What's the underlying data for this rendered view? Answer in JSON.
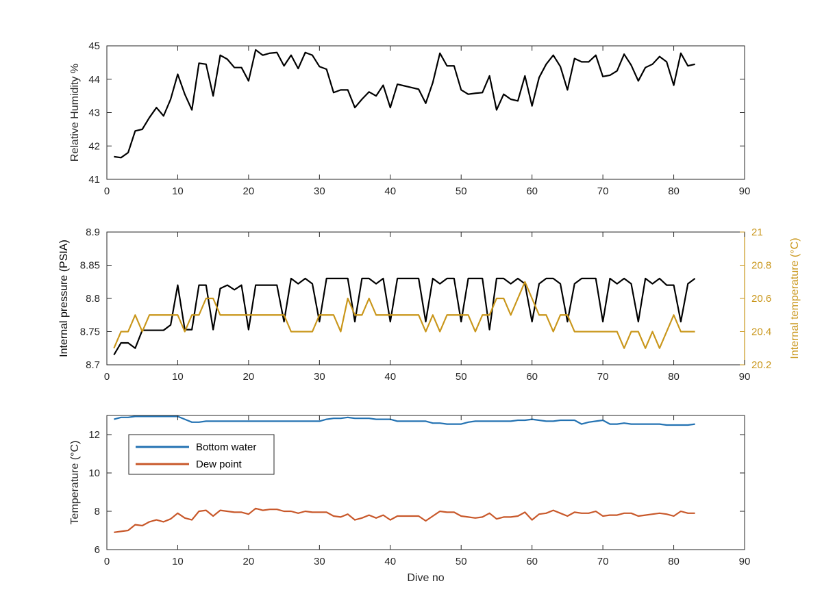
{
  "colors": {
    "humidity": "#000000",
    "pressure": "#000000",
    "internal_temperature": "#c9961a",
    "bottom_water": "#2372b2",
    "dew_point": "#c8582a",
    "axis": "#262626"
  },
  "chart_data": [
    {
      "type": "line",
      "xlabel": "",
      "ylabel": "Relative Humidity %",
      "xlim": [
        0,
        90
      ],
      "ylim": [
        41,
        45
      ],
      "x_ticks": [
        "0",
        "10",
        "20",
        "30",
        "40",
        "50",
        "60",
        "70",
        "80",
        "90"
      ],
      "y_ticks": [
        "41",
        "42",
        "43",
        "44",
        "45"
      ],
      "x": [
        1,
        2,
        3,
        4,
        5,
        6,
        7,
        8,
        9,
        10,
        11,
        12,
        13,
        14,
        15,
        16,
        17,
        18,
        19,
        20,
        21,
        22,
        23,
        24,
        25,
        26,
        27,
        28,
        29,
        30,
        31,
        32,
        33,
        34,
        35,
        36,
        37,
        38,
        39,
        40,
        41,
        42,
        43,
        44,
        45,
        46,
        47,
        48,
        49,
        50,
        51,
        52,
        53,
        54,
        55,
        56,
        57,
        58,
        59,
        60,
        61,
        62,
        63,
        64,
        65,
        66,
        67,
        68,
        69,
        70,
        71,
        72,
        73,
        74,
        75,
        76,
        77,
        78,
        79,
        80,
        81,
        82,
        83
      ],
      "series": [
        {
          "values": [
            41.68,
            41.65,
            41.8,
            42.45,
            42.5,
            42.85,
            43.15,
            42.9,
            43.4,
            44.15,
            43.55,
            43.08,
            44.48,
            44.45,
            43.5,
            44.72,
            44.6,
            44.35,
            44.35,
            43.95,
            44.88,
            44.72,
            44.78,
            44.8,
            44.4,
            44.72,
            44.32,
            44.8,
            44.72,
            44.38,
            44.3,
            43.6,
            43.68,
            43.68,
            43.15,
            43.4,
            43.62,
            43.5,
            43.82,
            43.15,
            43.85,
            43.8,
            43.75,
            43.7,
            43.28,
            43.9,
            44.78,
            44.4,
            44.4,
            43.68,
            43.55,
            43.58,
            43.6,
            44.1,
            43.08,
            43.55,
            43.4,
            43.35,
            44.1,
            43.2,
            44.05,
            44.45,
            44.72,
            44.38,
            43.68,
            44.62,
            44.52,
            44.52,
            44.72,
            44.08,
            44.12,
            44.25,
            44.75,
            44.42,
            43.95,
            44.35,
            44.45,
            44.68,
            44.52,
            43.82,
            44.78,
            44.4,
            44.45
          ]
        }
      ]
    },
    {
      "type": "line",
      "xlabel": "",
      "ylabel": "Internal pressure (PSIA)",
      "ylabel_right": "Internal temperature (°C)",
      "xlim": [
        0,
        90
      ],
      "ylim": [
        8.7,
        8.9
      ],
      "ylim_right": [
        20.2,
        21
      ],
      "x_ticks": [
        "0",
        "10",
        "20",
        "30",
        "40",
        "50",
        "60",
        "70",
        "80",
        "90"
      ],
      "y_ticks": [
        "8.7",
        "8.75",
        "8.8",
        "8.85",
        "8.9"
      ],
      "y_ticks_right": [
        "20.2",
        "20.4",
        "20.6",
        "20.8",
        "21"
      ],
      "x": [
        1,
        2,
        3,
        4,
        5,
        6,
        7,
        8,
        9,
        10,
        11,
        12,
        13,
        14,
        15,
        16,
        17,
        18,
        19,
        20,
        21,
        22,
        23,
        24,
        25,
        26,
        27,
        28,
        29,
        30,
        31,
        32,
        33,
        34,
        35,
        36,
        37,
        38,
        39,
        40,
        41,
        42,
        43,
        44,
        45,
        46,
        47,
        48,
        49,
        50,
        51,
        52,
        53,
        54,
        55,
        56,
        57,
        58,
        59,
        60,
        61,
        62,
        63,
        64,
        65,
        66,
        67,
        68,
        69,
        70,
        71,
        72,
        73,
        74,
        75,
        76,
        77,
        78,
        79,
        80,
        81,
        82,
        83
      ],
      "series": [
        {
          "axis": "left",
          "values": [
            8.715,
            8.733,
            8.733,
            8.725,
            8.752,
            8.752,
            8.752,
            8.752,
            8.76,
            8.82,
            8.753,
            8.753,
            8.82,
            8.82,
            8.753,
            8.815,
            8.82,
            8.813,
            8.82,
            8.753,
            8.82,
            8.82,
            8.82,
            8.82,
            8.765,
            8.83,
            8.822,
            8.83,
            8.822,
            8.765,
            8.83,
            8.83,
            8.83,
            8.83,
            8.765,
            8.83,
            8.83,
            8.822,
            8.83,
            8.765,
            8.83,
            8.83,
            8.83,
            8.83,
            8.765,
            8.83,
            8.822,
            8.83,
            8.83,
            8.765,
            8.83,
            8.83,
            8.83,
            8.753,
            8.83,
            8.83,
            8.822,
            8.83,
            8.822,
            8.765,
            8.822,
            8.83,
            8.83,
            8.822,
            8.765,
            8.822,
            8.83,
            8.83,
            8.83,
            8.765,
            8.83,
            8.822,
            8.83,
            8.822,
            8.765,
            8.83,
            8.822,
            8.83,
            8.82,
            8.82,
            8.765,
            8.822,
            8.83
          ]
        },
        {
          "axis": "right",
          "values": [
            20.3,
            20.4,
            20.4,
            20.5,
            20.4,
            20.5,
            20.5,
            20.5,
            20.5,
            20.5,
            20.4,
            20.5,
            20.5,
            20.6,
            20.6,
            20.5,
            20.5,
            20.5,
            20.5,
            20.5,
            20.5,
            20.5,
            20.5,
            20.5,
            20.5,
            20.4,
            20.4,
            20.4,
            20.4,
            20.5,
            20.5,
            20.5,
            20.4,
            20.6,
            20.5,
            20.5,
            20.6,
            20.5,
            20.5,
            20.5,
            20.5,
            20.5,
            20.5,
            20.5,
            20.4,
            20.5,
            20.4,
            20.5,
            20.5,
            20.5,
            20.5,
            20.4,
            20.5,
            20.5,
            20.6,
            20.6,
            20.5,
            20.6,
            20.7,
            20.6,
            20.5,
            20.5,
            20.4,
            20.5,
            20.5,
            20.4,
            20.4,
            20.4,
            20.4,
            20.4,
            20.4,
            20.4,
            20.3,
            20.4,
            20.4,
            20.3,
            20.4,
            20.3,
            20.4,
            20.5,
            20.4,
            20.4,
            20.4
          ]
        }
      ]
    },
    {
      "type": "line",
      "xlabel": "Dive no",
      "ylabel": "Temperature (°C)",
      "xlim": [
        0,
        90
      ],
      "ylim": [
        6,
        13
      ],
      "x_ticks": [
        "0",
        "10",
        "20",
        "30",
        "40",
        "50",
        "60",
        "70",
        "80",
        "90"
      ],
      "y_ticks": [
        "6",
        "8",
        "10",
        "12"
      ],
      "legend_position": "upper-left",
      "x": [
        1,
        2,
        3,
        4,
        5,
        6,
        7,
        8,
        9,
        10,
        11,
        12,
        13,
        14,
        15,
        16,
        17,
        18,
        19,
        20,
        21,
        22,
        23,
        24,
        25,
        26,
        27,
        28,
        29,
        30,
        31,
        32,
        33,
        34,
        35,
        36,
        37,
        38,
        39,
        40,
        41,
        42,
        43,
        44,
        45,
        46,
        47,
        48,
        49,
        50,
        51,
        52,
        53,
        54,
        55,
        56,
        57,
        58,
        59,
        60,
        61,
        62,
        63,
        64,
        65,
        66,
        67,
        68,
        69,
        70,
        71,
        72,
        73,
        74,
        75,
        76,
        77,
        78,
        79,
        80,
        81,
        82,
        83
      ],
      "series": [
        {
          "name": "Bottom water",
          "values": [
            12.8,
            12.9,
            12.9,
            12.95,
            12.95,
            12.95,
            12.95,
            12.95,
            12.95,
            12.95,
            12.8,
            12.65,
            12.65,
            12.7,
            12.7,
            12.7,
            12.7,
            12.7,
            12.7,
            12.7,
            12.7,
            12.7,
            12.7,
            12.7,
            12.7,
            12.7,
            12.7,
            12.7,
            12.7,
            12.7,
            12.8,
            12.85,
            12.85,
            12.9,
            12.85,
            12.85,
            12.85,
            12.8,
            12.8,
            12.8,
            12.7,
            12.7,
            12.7,
            12.7,
            12.7,
            12.6,
            12.6,
            12.55,
            12.55,
            12.55,
            12.65,
            12.7,
            12.7,
            12.7,
            12.7,
            12.7,
            12.7,
            12.75,
            12.75,
            12.8,
            12.75,
            12.7,
            12.7,
            12.75,
            12.75,
            12.75,
            12.55,
            12.65,
            12.7,
            12.75,
            12.55,
            12.55,
            12.6,
            12.55,
            12.55,
            12.55,
            12.55,
            12.55,
            12.5,
            12.5,
            12.5,
            12.5,
            12.55
          ]
        },
        {
          "name": "Dew point",
          "values": [
            6.9,
            6.95,
            7.0,
            7.3,
            7.25,
            7.45,
            7.55,
            7.45,
            7.6,
            7.9,
            7.65,
            7.55,
            8.0,
            8.05,
            7.75,
            8.05,
            8.0,
            7.95,
            7.95,
            7.85,
            8.15,
            8.05,
            8.1,
            8.1,
            8.0,
            8.0,
            7.9,
            8.0,
            7.95,
            7.95,
            7.95,
            7.75,
            7.7,
            7.85,
            7.55,
            7.65,
            7.8,
            7.65,
            7.8,
            7.55,
            7.75,
            7.75,
            7.75,
            7.75,
            7.5,
            7.75,
            8.0,
            7.95,
            7.95,
            7.75,
            7.7,
            7.65,
            7.7,
            7.9,
            7.6,
            7.7,
            7.7,
            7.75,
            7.95,
            7.55,
            7.85,
            7.9,
            8.05,
            7.9,
            7.75,
            7.95,
            7.9,
            7.9,
            8.0,
            7.75,
            7.8,
            7.8,
            7.9,
            7.9,
            7.75,
            7.8,
            7.85,
            7.9,
            7.85,
            7.75,
            8.0,
            7.9,
            7.9
          ]
        }
      ]
    }
  ]
}
